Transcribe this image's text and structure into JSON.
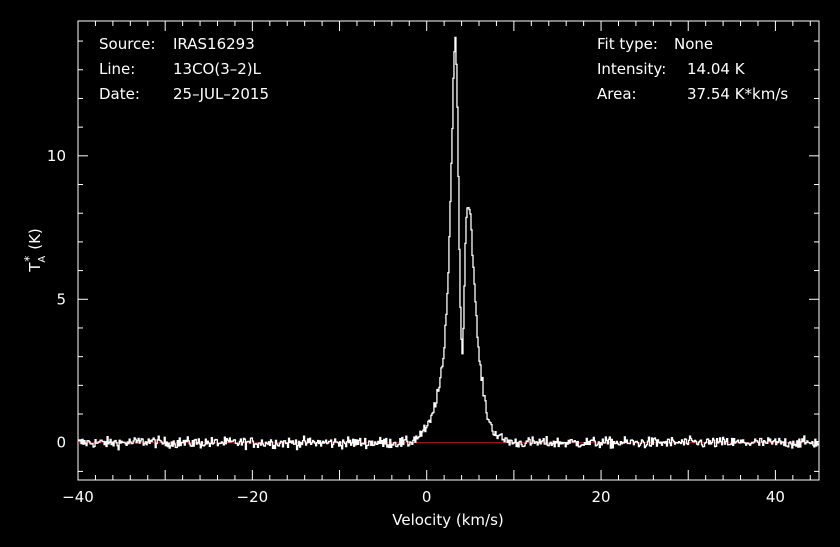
{
  "header_left": {
    "source_label": "Source:",
    "source_value": "IRAS16293",
    "line_label": "Line:",
    "line_value": "13CO(3–2)L",
    "date_label": "Date:",
    "date_value": "25–JUL–2015"
  },
  "header_right": {
    "fit_label": "Fit type:",
    "fit_value": "None",
    "intensity_label": "Intensity:",
    "intensity_value": "14.04 K",
    "area_label": "Area:",
    "area_value": "37.54 K*km/s"
  },
  "colors": {
    "background": "#000000",
    "foreground": "#ffffff",
    "baseline": "#e00000"
  },
  "chart_data": {
    "type": "line",
    "title": "",
    "xlabel": "Velocity (km/s)",
    "ylabel": "T",
    "ylabel_sub": "A",
    "ylabel_sup": "*",
    "ylabel_unit": "(K)",
    "xlim": [
      -40,
      45
    ],
    "ylim": [
      -1.3,
      14.7
    ],
    "x_ticks": [
      -40,
      -20,
      0,
      20,
      40
    ],
    "y_ticks": [
      0,
      5,
      10
    ],
    "x_tick_labels": [
      "−40",
      "−20",
      "0",
      "20",
      "40"
    ],
    "y_tick_labels": [
      "0",
      "5",
      "10"
    ],
    "baseline": 0,
    "grid": false,
    "series": [
      {
        "x": [
          -40,
          -38,
          -36,
          -34,
          -32,
          -30,
          -28,
          -26,
          -24,
          -22,
          -20,
          -18,
          -16,
          -14,
          -12,
          -10,
          -8,
          -6,
          -4,
          -2,
          -1,
          0,
          0.5,
          1,
          1.5,
          2,
          2.5,
          3,
          3.1,
          3.3,
          3.5,
          3.7,
          3.9,
          4.1,
          4.3,
          4.5,
          4.7,
          5,
          5.3,
          5.6,
          6,
          6.5,
          7,
          7.5,
          8,
          8.5,
          9,
          10,
          12,
          14,
          16,
          18,
          20,
          22,
          24,
          26,
          28,
          30,
          32,
          34,
          36,
          38,
          40,
          42,
          45
        ],
        "y": [
          0,
          0,
          0,
          0,
          0.05,
          0,
          0,
          0,
          0,
          0,
          0,
          0,
          0,
          0,
          0,
          0,
          0,
          0,
          0,
          0,
          0.2,
          0.5,
          0.8,
          1.4,
          2,
          3.1,
          6,
          11.5,
          13.4,
          14.04,
          12.5,
          8,
          4,
          3.1,
          5,
          7.7,
          8.3,
          8.1,
          6.5,
          4.8,
          3,
          1.8,
          0.9,
          0.5,
          0.3,
          0.15,
          0.1,
          0,
          0,
          0,
          0,
          0,
          0,
          0,
          0,
          0,
          0,
          0,
          0,
          0,
          0,
          0,
          0,
          0,
          0
        ]
      }
    ]
  }
}
